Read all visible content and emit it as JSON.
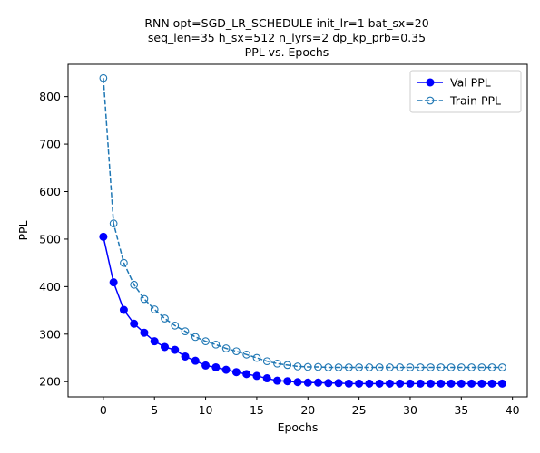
{
  "chart_data": {
    "type": "line",
    "title_lines": [
      "RNN opt=SGD_LR_SCHEDULE init_lr=1 bat_sx=20",
      "seq_len=35 h_sx=512 n_lyrs=2 dp_kp_prb=0.35",
      "PPL vs. Epochs"
    ],
    "xlabel": "Epochs",
    "ylabel": "PPL",
    "xlim": [
      -3.45,
      41.45
    ],
    "ylim": [
      168,
      868
    ],
    "xticks": [
      0,
      5,
      10,
      15,
      20,
      25,
      30,
      35,
      40
    ],
    "yticks": [
      200,
      300,
      400,
      500,
      600,
      700,
      800
    ],
    "legend": {
      "position": "top-right"
    },
    "series": [
      {
        "name": "Val PPL",
        "color": "#0000ff",
        "linestyle": "solid",
        "marker": "filled-circle",
        "x": [
          0,
          1,
          2,
          3,
          4,
          5,
          6,
          7,
          8,
          9,
          10,
          11,
          12,
          13,
          14,
          15,
          16,
          17,
          18,
          19,
          20,
          21,
          22,
          23,
          24,
          25,
          26,
          27,
          28,
          29,
          30,
          31,
          32,
          33,
          34,
          35,
          36,
          37,
          38,
          39
        ],
        "values": [
          505,
          409,
          351,
          322,
          303,
          285,
          273,
          267,
          253,
          244,
          234,
          230,
          225,
          220,
          216,
          212,
          207,
          202,
          201,
          199,
          198,
          198,
          197,
          197,
          196,
          196,
          196,
          196,
          196,
          196,
          196,
          196,
          196,
          196,
          196,
          196,
          196,
          196,
          196,
          196
        ]
      },
      {
        "name": "Train PPL",
        "color": "#1f77b4",
        "linestyle": "dashed",
        "marker": "open-circle",
        "x": [
          0,
          1,
          2,
          3,
          4,
          5,
          6,
          7,
          8,
          9,
          10,
          11,
          12,
          13,
          14,
          15,
          16,
          17,
          18,
          19,
          20,
          21,
          22,
          23,
          24,
          25,
          26,
          27,
          28,
          29,
          30,
          31,
          32,
          33,
          34,
          35,
          36,
          37,
          38,
          39
        ],
        "values": [
          839,
          533,
          450,
          404,
          374,
          352,
          333,
          318,
          306,
          294,
          285,
          278,
          270,
          264,
          257,
          250,
          243,
          238,
          235,
          232,
          231,
          231,
          230,
          230,
          230,
          230,
          230,
          230,
          230,
          230,
          230,
          230,
          230,
          230,
          230,
          230,
          230,
          230,
          230,
          230
        ]
      }
    ]
  }
}
